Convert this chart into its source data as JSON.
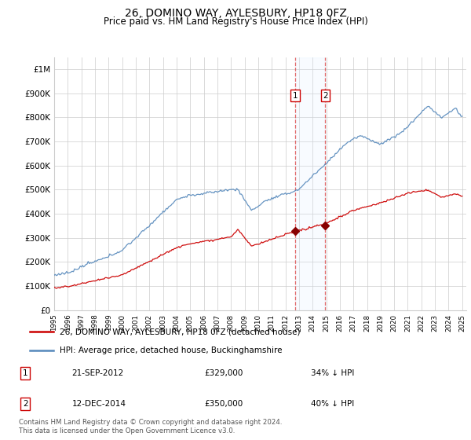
{
  "title": "26, DOMINO WAY, AYLESBURY, HP18 0FZ",
  "subtitle": "Price paid vs. HM Land Registry's House Price Index (HPI)",
  "ylabel_ticks": [
    "£0",
    "£100K",
    "£200K",
    "£300K",
    "£400K",
    "£500K",
    "£600K",
    "£700K",
    "£800K",
    "£900K",
    "£1M"
  ],
  "ytick_values": [
    0,
    100000,
    200000,
    300000,
    400000,
    500000,
    600000,
    700000,
    800000,
    900000,
    1000000
  ],
  "ylim": [
    0,
    1050000
  ],
  "x_start_year": 1995,
  "x_end_year": 2025,
  "sale1": {
    "date_num": 2012.72,
    "price": 329000,
    "label": "1"
  },
  "sale2": {
    "date_num": 2014.94,
    "price": 350000,
    "label": "2"
  },
  "legend_line1": "26, DOMINO WAY, AYLESBURY, HP18 0FZ (detached house)",
  "legend_line2": "HPI: Average price, detached house, Buckinghamshire",
  "table_rows": [
    {
      "num": "1",
      "date": "21-SEP-2012",
      "price": "£329,000",
      "pct": "34% ↓ HPI"
    },
    {
      "num": "2",
      "date": "12-DEC-2014",
      "price": "£350,000",
      "pct": "40% ↓ HPI"
    }
  ],
  "footnote": "Contains HM Land Registry data © Crown copyright and database right 2024.\nThis data is licensed under the Open Government Licence v3.0.",
  "hpi_color": "#5588bb",
  "price_color": "#cc0000",
  "sale_marker_color": "#880000",
  "vline_color": "#dd4444",
  "highlight_color": "#ddeeff"
}
